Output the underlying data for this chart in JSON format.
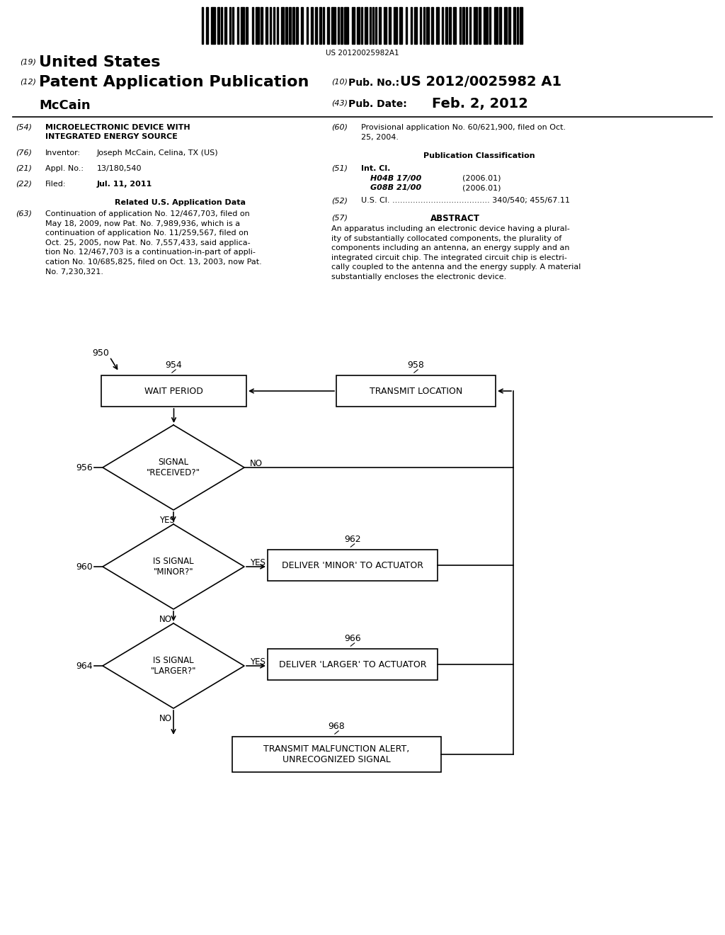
{
  "background_color": "#ffffff",
  "barcode_text": "US 20120025982A1",
  "header": {
    "line1_num": "(19)",
    "line1_text": "United States",
    "line2_num": "(12)",
    "line2_text": "Patent Application Publication",
    "line3_text": "McCain",
    "right_line1_num": "(10)",
    "right_line1_label": "Pub. No.:",
    "right_line1_value": "US 2012/0025982 A1",
    "right_line2_num": "(43)",
    "right_line2_label": "Pub. Date:",
    "right_line2_value": "Feb. 2, 2012"
  },
  "flowchart": {
    "label_950": "950",
    "label_954": "954",
    "label_958": "958",
    "label_956": "956",
    "label_960": "960",
    "label_962": "962",
    "label_964": "964",
    "label_966": "966",
    "label_968": "968",
    "box_wait": "WAIT PERIOD",
    "box_transmit": "TRANSMIT LOCATION",
    "diamond_received": "SIGNAL\n\"RECEIVED?\"",
    "diamond_minor": "IS SIGNAL\n\"MINOR?\"",
    "box_minor": "DELIVER 'MINOR' TO ACTUATOR",
    "diamond_larger": "IS SIGNAL\n\"LARGER?\"",
    "box_larger": "DELIVER 'LARGER' TO ACTUATOR",
    "box_malfunction": "TRANSMIT MALFUNCTION ALERT,\nUNRECOGNIZED SIGNAL",
    "yes_label": "YES",
    "no_label": "NO"
  }
}
